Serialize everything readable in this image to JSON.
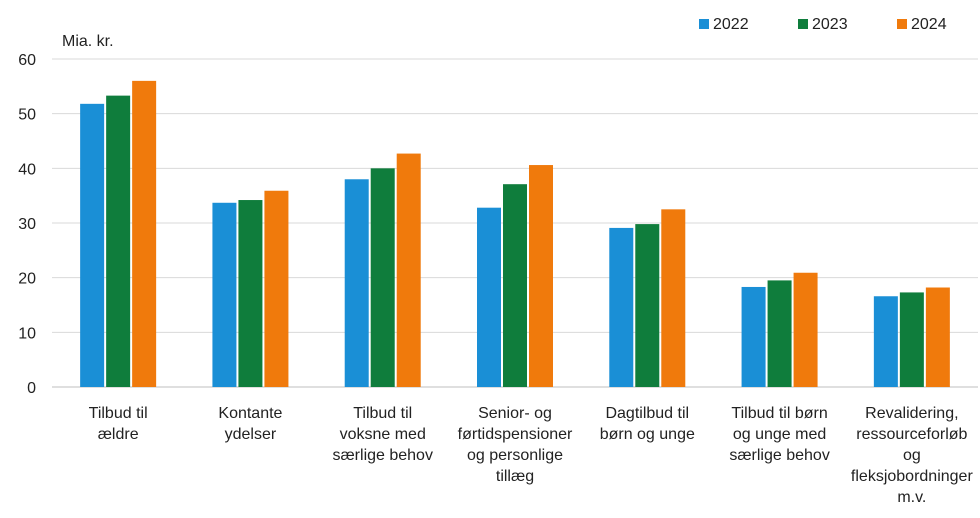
{
  "chart_data": {
    "type": "bar",
    "unit_label": "Mia. kr.",
    "categories": [
      [
        "Tilbud til",
        "ældre"
      ],
      [
        "Kontante",
        "ydelser"
      ],
      [
        "Tilbud til",
        "voksne med",
        "særlige behov"
      ],
      [
        "Senior- og",
        "førtidspensioner",
        "og personlige",
        "tillæg"
      ],
      [
        "Dagtilbud til",
        "børn og unge"
      ],
      [
        "Tilbud til børn",
        "og unge med",
        "særlige behov"
      ],
      [
        "Revalidering,",
        "ressourceforløb",
        "og",
        "fleksjobordninger",
        "m.v."
      ]
    ],
    "series": [
      {
        "name": "2022",
        "color": "#1a8fd6",
        "values": [
          51.8,
          33.7,
          38.0,
          32.8,
          29.1,
          18.3,
          16.6
        ]
      },
      {
        "name": "2023",
        "color": "#0f7d3c",
        "values": [
          53.3,
          34.2,
          40.0,
          37.1,
          29.8,
          19.5,
          17.3
        ]
      },
      {
        "name": "2024",
        "color": "#f07a0c",
        "values": [
          56.0,
          35.9,
          42.7,
          40.6,
          32.5,
          20.9,
          18.2
        ]
      }
    ],
    "ylim": [
      0,
      60
    ],
    "yticks": [
      0,
      10,
      20,
      30,
      40,
      50,
      60
    ],
    "grid": true,
    "legend_position": "top-right"
  }
}
